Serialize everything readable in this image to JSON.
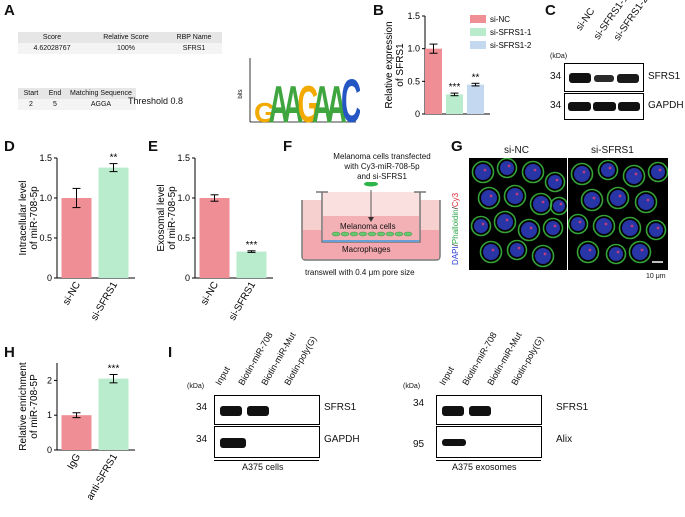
{
  "panels": {
    "A": "A",
    "B": "B",
    "C": "C",
    "D": "D",
    "E": "E",
    "F": "F",
    "G": "G",
    "H": "H",
    "I": "I"
  },
  "panel_a": {
    "table1_headers": [
      "Score",
      "Relative Score",
      "RBP Name"
    ],
    "table1_row": [
      "4.62028767",
      "100%",
      "SFRS1"
    ],
    "table2_headers": [
      "Start",
      "End",
      "Matching Sequence"
    ],
    "table2_row": [
      "2",
      "5",
      "AGGA"
    ],
    "threshold_label": "Threshold",
    "threshold_value": "0.8",
    "logo_axis_label": "bits",
    "logo_sequence": "GAAGAAC",
    "colors": {
      "G": "#f2a900",
      "A": "#3fa53f",
      "C": "#2456c4"
    }
  },
  "chart_data": [
    {
      "id": "B",
      "type": "bar",
      "ylabel": "Relative expression of SFRS1",
      "categories": [
        "si-NC",
        "si-SFRS1-1",
        "si-SFRS1-2"
      ],
      "values": [
        1.0,
        0.3,
        0.45
      ],
      "errors": [
        0.07,
        0.02,
        0.02
      ],
      "significance": [
        "",
        "***",
        "**"
      ],
      "legend": [
        "si-NC",
        "si-SFRS1-1",
        "si-SFRS1-2"
      ],
      "ylim": [
        0,
        1.5
      ],
      "yticks": [
        "0",
        "0.5",
        "1.0",
        "1.5"
      ],
      "colors": [
        "#ef8e94",
        "#b8eccd",
        "#c4d8ef"
      ]
    },
    {
      "id": "D",
      "type": "bar",
      "ylabel": "Intracellular level of miR-708-5p",
      "categories": [
        "si-NC",
        "si-SFRS1"
      ],
      "values": [
        1.0,
        1.38
      ],
      "errors": [
        0.12,
        0.05
      ],
      "significance": [
        "",
        "**"
      ],
      "ylim": [
        0,
        1.5
      ],
      "yticks": [
        "0",
        "0.5",
        "1.0",
        "1.5"
      ],
      "colors": [
        "#ef8e94",
        "#b8eccd"
      ]
    },
    {
      "id": "E",
      "type": "bar",
      "ylabel": "Exosomal level of miR-708-5p",
      "categories": [
        "si-NC",
        "si-SFRS1"
      ],
      "values": [
        1.0,
        0.33
      ],
      "errors": [
        0.04,
        0.01
      ],
      "significance": [
        "",
        "***"
      ],
      "ylim": [
        0,
        1.5
      ],
      "yticks": [
        "0",
        "0.5",
        "1.0",
        "1.5"
      ],
      "colors": [
        "#ef8e94",
        "#b8eccd"
      ]
    },
    {
      "id": "H",
      "type": "bar",
      "ylabel": "Relative enrichment of miR-708-5P",
      "categories": [
        "IgG",
        "anti-SFRS1"
      ],
      "values": [
        1.0,
        2.05
      ],
      "errors": [
        0.07,
        0.12
      ],
      "significance": [
        "",
        "***"
      ],
      "ylim": [
        0,
        2.5
      ],
      "yticks": [
        "0",
        "1",
        "2"
      ],
      "colors": [
        "#ef8e94",
        "#b8eccd"
      ]
    }
  ],
  "panel_c": {
    "kda_label": "(kDa)",
    "lanes": [
      "si-NC",
      "si-SFRS1-1",
      "si-SFRS1-2"
    ],
    "rows": [
      {
        "kda": "34",
        "protein": "SFRS1"
      },
      {
        "kda": "34",
        "protein": "GAPDH"
      }
    ]
  },
  "panel_f": {
    "caption_lines": [
      "Melanoma cells transfected",
      "with Cy3-miR-708-5p",
      "and si-SFRS1"
    ],
    "upper_label": "Melanoma cells",
    "lower_label": "Macrophages",
    "bottom_caption": "transwell with 0.4 μm pore size"
  },
  "panel_g": {
    "titles": [
      "si-NC",
      "si-SFRS1"
    ],
    "side_label_parts": [
      "DAPI",
      "/",
      "Phalloidin",
      "/",
      "Cy3"
    ],
    "scale_bar": "10 μm"
  },
  "panel_i": {
    "kda_label": "(kDa)",
    "lanes": [
      "Input",
      "Biotin-miR-708",
      "Biotin-miR-Mut",
      "Biotin-poly(G)"
    ],
    "left": {
      "rows": [
        {
          "kda": "34",
          "protein": "SFRS1"
        },
        {
          "kda": "34",
          "protein": "GAPDH"
        }
      ],
      "caption": "A375 cells"
    },
    "right": {
      "rows": [
        {
          "kda": "34",
          "protein": "SFRS1"
        },
        {
          "kda": "95",
          "protein": "Alix"
        }
      ],
      "caption": "A375 exosomes"
    }
  }
}
